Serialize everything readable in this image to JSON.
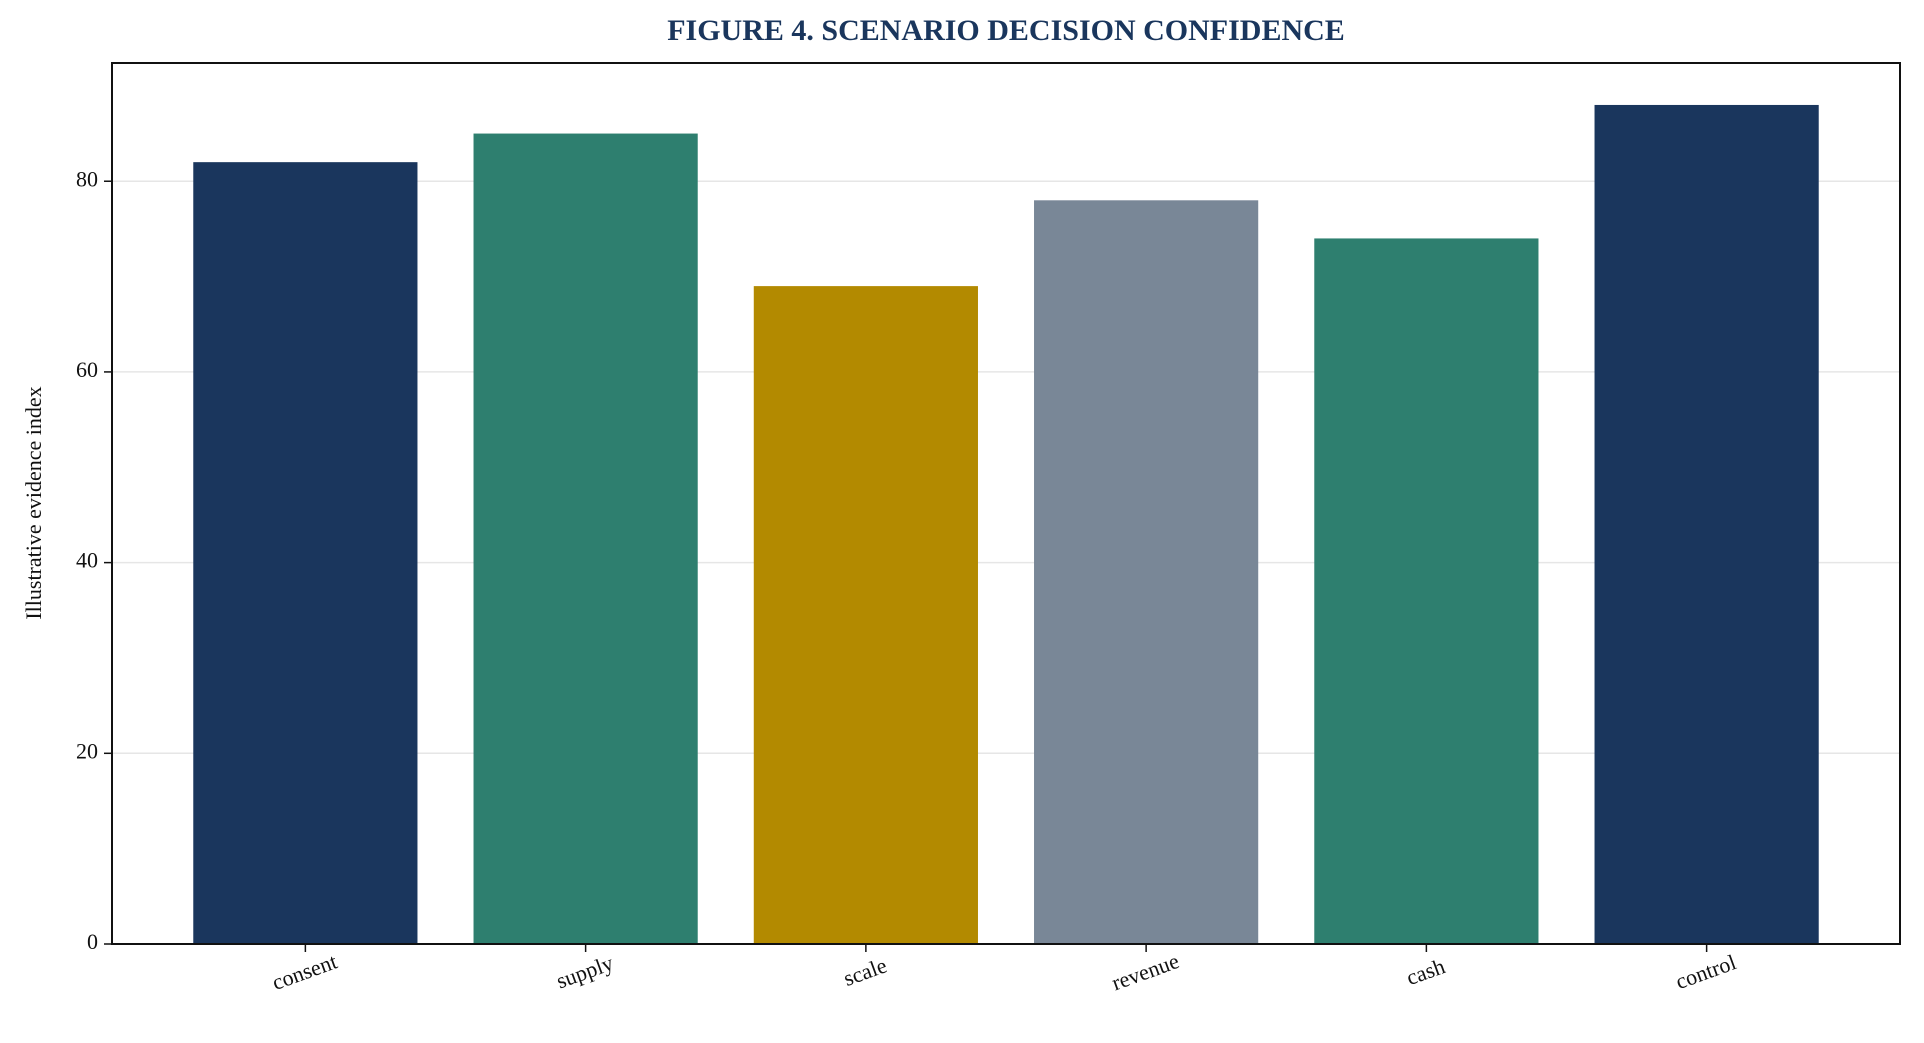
{
  "chart_data": {
    "type": "bar",
    "title": "FIGURE 4. SCENARIO DECISION CONFIDENCE",
    "ylabel": "Illustrative evidence index",
    "categories": [
      "consent",
      "supply",
      "scale",
      "revenue",
      "cash",
      "control"
    ],
    "values": [
      82,
      85,
      69,
      78,
      74,
      88
    ],
    "colors": [
      "#1a365d",
      "#2e7f6f",
      "#b38a00",
      "#798797",
      "#2e7f6f",
      "#1a365d"
    ],
    "ylim": [
      0,
      92.4
    ],
    "yticks": [
      0,
      20,
      40,
      60,
      80
    ],
    "grid": true
  }
}
